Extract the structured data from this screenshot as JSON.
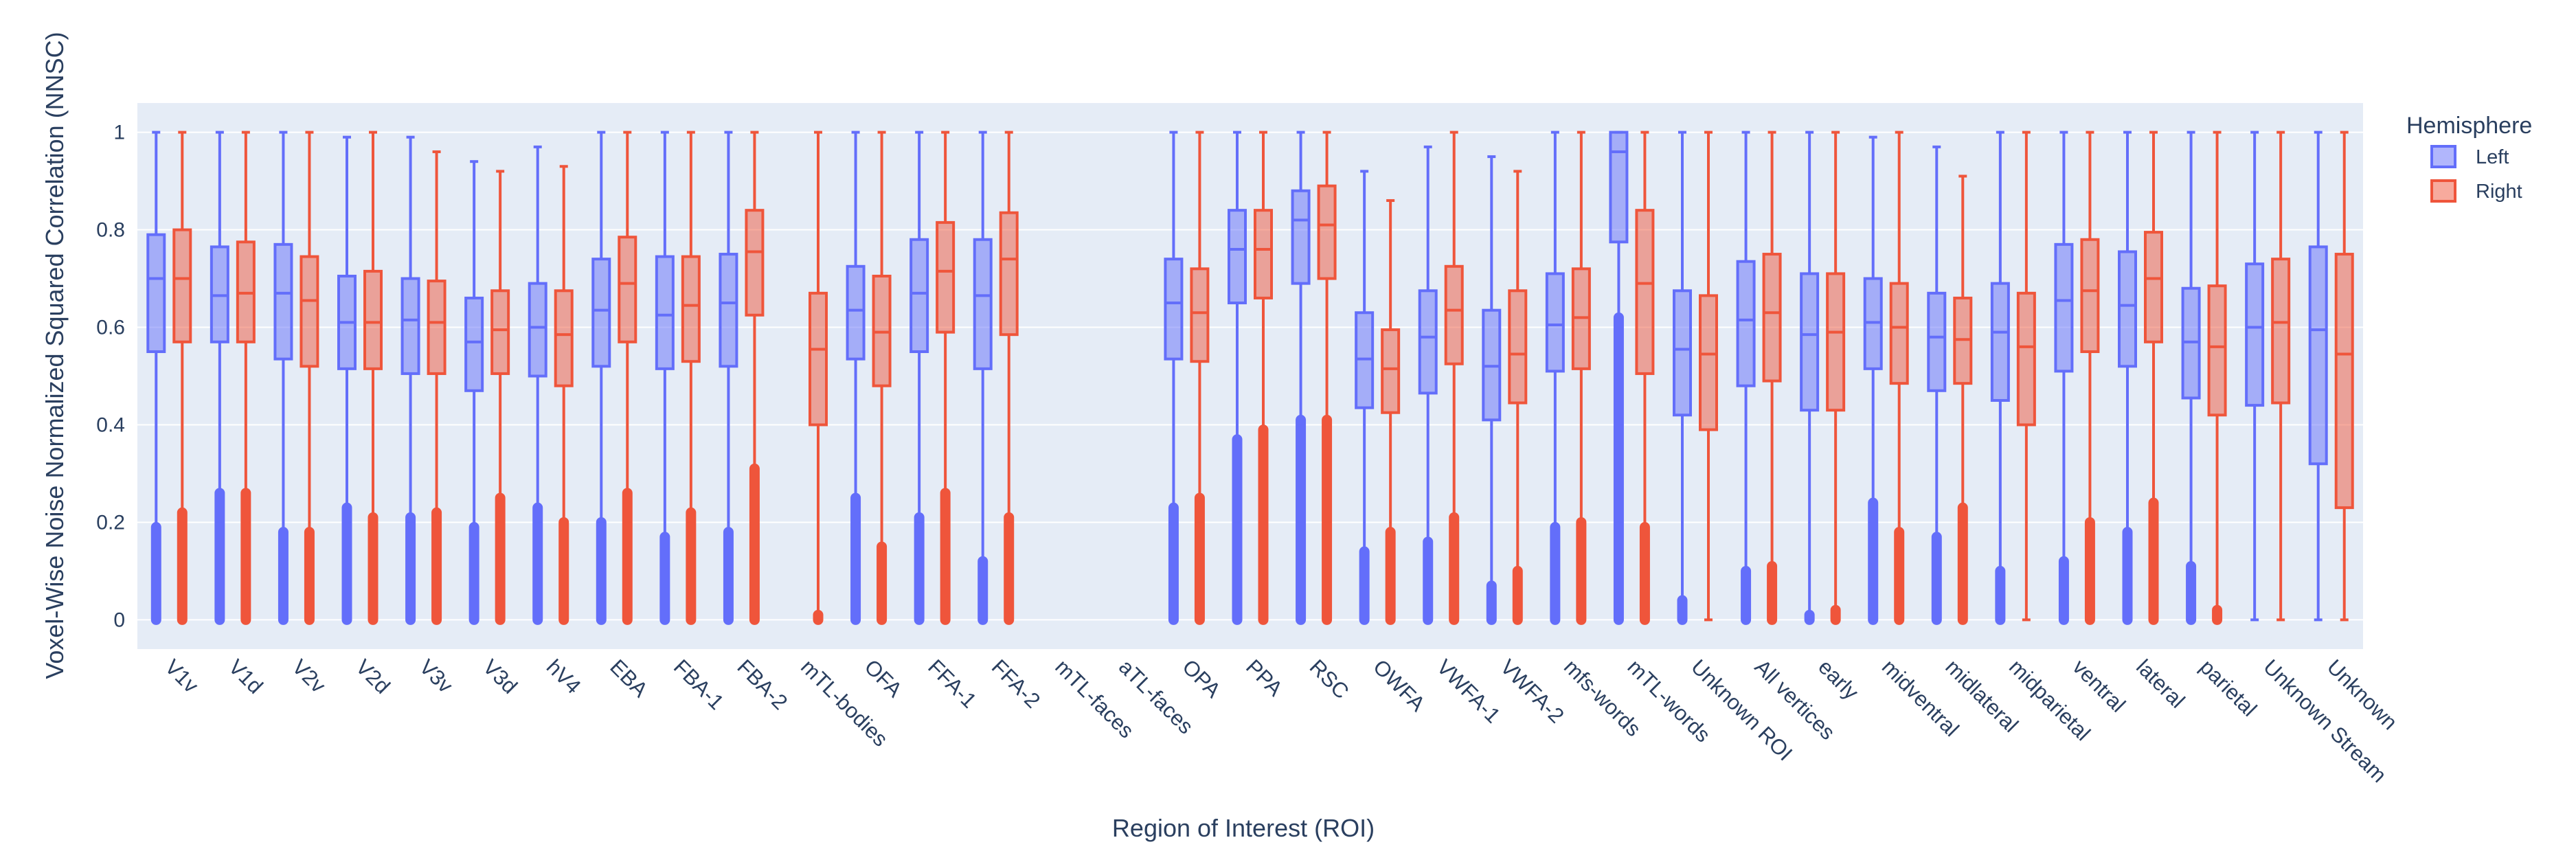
{
  "chart_data": {
    "type": "box",
    "xlabel": "Region of Interest (ROI)",
    "ylabel": "Voxel-Wise Noise Normalized Squared Correlation (NNSC)",
    "ylim": [
      -0.06,
      1.06
    ],
    "y_ticks": [
      0,
      0.2,
      0.4,
      0.6,
      0.8,
      1
    ],
    "y_tick_labels": [
      "0",
      "0.2",
      "0.4",
      "0.6",
      "0.8",
      "1"
    ],
    "grid": true,
    "legend": {
      "title": "Hemisphere",
      "placement": "top-right",
      "entries": [
        "Left",
        "Right"
      ]
    },
    "colors": {
      "Left": "#636efa",
      "Right": "#ef553b",
      "plot_bg": "#e5ecf6",
      "grid": "#ffffff"
    },
    "categories": [
      "V1v",
      "V1d",
      "V2v",
      "V2d",
      "V3v",
      "V3d",
      "hV4",
      "EBA",
      "FBA-1",
      "FBA-2",
      "mTL-bodies",
      "OFA",
      "FFA-1",
      "FFA-2",
      "mTL-faces",
      "aTL-faces",
      "OPA",
      "PPA",
      "RSC",
      "OWFA",
      "VWFA-1",
      "VWFA-2",
      "mfs-words",
      "mTL-words",
      "Unknown ROI",
      "All vertices",
      "early",
      "midventral",
      "midlateral",
      "midparietal",
      "ventral",
      "lateral",
      "parietal",
      "Unknown Stream",
      "Unknown"
    ],
    "series": [
      {
        "name": "Left",
        "boxes": [
          {
            "category": "V1v",
            "q1": 0.55,
            "median": 0.7,
            "q3": 0.79,
            "lower": 0.19,
            "upper": 1.0
          },
          {
            "category": "V1d",
            "q1": 0.57,
            "median": 0.665,
            "q3": 0.765,
            "lower": 0.26,
            "upper": 1.0
          },
          {
            "category": "V2v",
            "q1": 0.535,
            "median": 0.67,
            "q3": 0.77,
            "lower": 0.18,
            "upper": 1.0
          },
          {
            "category": "V2d",
            "q1": 0.515,
            "median": 0.61,
            "q3": 0.705,
            "lower": 0.23,
            "upper": 0.99
          },
          {
            "category": "V3v",
            "q1": 0.505,
            "median": 0.615,
            "q3": 0.7,
            "lower": 0.21,
            "upper": 0.99
          },
          {
            "category": "V3d",
            "q1": 0.47,
            "median": 0.57,
            "q3": 0.66,
            "lower": 0.19,
            "upper": 0.94
          },
          {
            "category": "hV4",
            "q1": 0.5,
            "median": 0.6,
            "q3": 0.69,
            "lower": 0.23,
            "upper": 0.97
          },
          {
            "category": "EBA",
            "q1": 0.52,
            "median": 0.635,
            "q3": 0.74,
            "lower": 0.2,
            "upper": 1.0
          },
          {
            "category": "FBA-1",
            "q1": 0.515,
            "median": 0.625,
            "q3": 0.745,
            "lower": 0.17,
            "upper": 1.0
          },
          {
            "category": "FBA-2",
            "q1": 0.52,
            "median": 0.65,
            "q3": 0.75,
            "lower": 0.18,
            "upper": 1.0
          },
          {
            "category": "mTL-bodies",
            "empty": true
          },
          {
            "category": "OFA",
            "q1": 0.535,
            "median": 0.635,
            "q3": 0.725,
            "lower": 0.25,
            "upper": 1.0
          },
          {
            "category": "FFA-1",
            "q1": 0.55,
            "median": 0.67,
            "q3": 0.78,
            "lower": 0.21,
            "upper": 1.0
          },
          {
            "category": "FFA-2",
            "q1": 0.515,
            "median": 0.665,
            "q3": 0.78,
            "lower": 0.12,
            "upper": 1.0
          },
          {
            "category": "mTL-faces",
            "empty": true
          },
          {
            "category": "aTL-faces",
            "empty": true
          },
          {
            "category": "OPA",
            "q1": 0.535,
            "median": 0.65,
            "q3": 0.74,
            "lower": 0.23,
            "upper": 1.0
          },
          {
            "category": "PPA",
            "q1": 0.65,
            "median": 0.76,
            "q3": 0.84,
            "lower": 0.37,
            "upper": 1.0
          },
          {
            "category": "RSC",
            "q1": 0.69,
            "median": 0.82,
            "q3": 0.88,
            "lower": 0.41,
            "upper": 1.0
          },
          {
            "category": "OWFA",
            "q1": 0.435,
            "median": 0.535,
            "q3": 0.63,
            "lower": 0.14,
            "upper": 0.92
          },
          {
            "category": "VWFA-1",
            "q1": 0.465,
            "median": 0.58,
            "q3": 0.675,
            "lower": 0.16,
            "upper": 0.97
          },
          {
            "category": "VWFA-2",
            "q1": 0.41,
            "median": 0.52,
            "q3": 0.635,
            "lower": 0.07,
            "upper": 0.95
          },
          {
            "category": "mfs-words",
            "q1": 0.51,
            "median": 0.605,
            "q3": 0.71,
            "lower": 0.19,
            "upper": 1.0
          },
          {
            "category": "mTL-words",
            "q1": 0.775,
            "median": 0.96,
            "q3": 1.0,
            "lower": 0.62,
            "upper": 1.0
          },
          {
            "category": "Unknown ROI",
            "q1": 0.42,
            "median": 0.555,
            "q3": 0.675,
            "lower": 0.04,
            "upper": 1.0
          },
          {
            "category": "All vertices",
            "q1": 0.48,
            "median": 0.615,
            "q3": 0.735,
            "lower": 0.1,
            "upper": 1.0
          },
          {
            "category": "early",
            "q1": 0.43,
            "median": 0.585,
            "q3": 0.71,
            "lower": 0.01,
            "upper": 1.0
          },
          {
            "category": "midventral",
            "q1": 0.515,
            "median": 0.61,
            "q3": 0.7,
            "lower": 0.24,
            "upper": 0.99
          },
          {
            "category": "midlateral",
            "q1": 0.47,
            "median": 0.58,
            "q3": 0.67,
            "lower": 0.17,
            "upper": 0.97
          },
          {
            "category": "midparietal",
            "q1": 0.45,
            "median": 0.59,
            "q3": 0.69,
            "lower": 0.1,
            "upper": 1.0
          },
          {
            "category": "ventral",
            "q1": 0.51,
            "median": 0.655,
            "q3": 0.77,
            "lower": 0.12,
            "upper": 1.0
          },
          {
            "category": "lateral",
            "q1": 0.52,
            "median": 0.645,
            "q3": 0.755,
            "lower": 0.18,
            "upper": 1.0
          },
          {
            "category": "parietal",
            "q1": 0.455,
            "median": 0.57,
            "q3": 0.68,
            "lower": 0.11,
            "upper": 1.0
          },
          {
            "category": "Unknown Stream",
            "q1": 0.44,
            "median": 0.6,
            "q3": 0.73,
            "lower": 0.0,
            "upper": 1.0
          },
          {
            "category": "Unknown",
            "q1": 0.32,
            "median": 0.595,
            "q3": 0.765,
            "lower": 0.0,
            "upper": 1.0
          }
        ]
      },
      {
        "name": "Right",
        "boxes": [
          {
            "category": "V1v",
            "q1": 0.57,
            "median": 0.7,
            "q3": 0.8,
            "lower": 0.22,
            "upper": 1.0
          },
          {
            "category": "V1d",
            "q1": 0.57,
            "median": 0.67,
            "q3": 0.775,
            "lower": 0.26,
            "upper": 1.0
          },
          {
            "category": "V2v",
            "q1": 0.52,
            "median": 0.655,
            "q3": 0.745,
            "lower": 0.18,
            "upper": 1.0
          },
          {
            "category": "V2d",
            "q1": 0.515,
            "median": 0.61,
            "q3": 0.715,
            "lower": 0.21,
            "upper": 1.0
          },
          {
            "category": "V3v",
            "q1": 0.505,
            "median": 0.61,
            "q3": 0.695,
            "lower": 0.22,
            "upper": 0.96
          },
          {
            "category": "V3d",
            "q1": 0.505,
            "median": 0.595,
            "q3": 0.675,
            "lower": 0.25,
            "upper": 0.92
          },
          {
            "category": "hV4",
            "q1": 0.48,
            "median": 0.585,
            "q3": 0.675,
            "lower": 0.2,
            "upper": 0.93
          },
          {
            "category": "EBA",
            "q1": 0.57,
            "median": 0.69,
            "q3": 0.785,
            "lower": 0.26,
            "upper": 1.0
          },
          {
            "category": "FBA-1",
            "q1": 0.53,
            "median": 0.645,
            "q3": 0.745,
            "lower": 0.22,
            "upper": 1.0
          },
          {
            "category": "FBA-2",
            "q1": 0.625,
            "median": 0.755,
            "q3": 0.84,
            "lower": 0.31,
            "upper": 1.0
          },
          {
            "category": "mTL-bodies",
            "q1": 0.4,
            "median": 0.555,
            "q3": 0.67,
            "lower": 0.01,
            "upper": 1.0
          },
          {
            "category": "OFA",
            "q1": 0.48,
            "median": 0.59,
            "q3": 0.705,
            "lower": 0.15,
            "upper": 1.0
          },
          {
            "category": "FFA-1",
            "q1": 0.59,
            "median": 0.715,
            "q3": 0.815,
            "lower": 0.26,
            "upper": 1.0
          },
          {
            "category": "FFA-2",
            "q1": 0.585,
            "median": 0.74,
            "q3": 0.835,
            "lower": 0.21,
            "upper": 1.0
          },
          {
            "category": "mTL-faces",
            "empty": true
          },
          {
            "category": "aTL-faces",
            "empty": true
          },
          {
            "category": "OPA",
            "q1": 0.53,
            "median": 0.63,
            "q3": 0.72,
            "lower": 0.25,
            "upper": 1.0
          },
          {
            "category": "PPA",
            "q1": 0.66,
            "median": 0.76,
            "q3": 0.84,
            "lower": 0.39,
            "upper": 1.0
          },
          {
            "category": "RSC",
            "q1": 0.7,
            "median": 0.81,
            "q3": 0.89,
            "lower": 0.41,
            "upper": 1.0
          },
          {
            "category": "OWFA",
            "q1": 0.425,
            "median": 0.515,
            "q3": 0.595,
            "lower": 0.18,
            "upper": 0.86
          },
          {
            "category": "VWFA-1",
            "q1": 0.525,
            "median": 0.635,
            "q3": 0.725,
            "lower": 0.21,
            "upper": 1.0
          },
          {
            "category": "VWFA-2",
            "q1": 0.445,
            "median": 0.545,
            "q3": 0.675,
            "lower": 0.1,
            "upper": 0.92
          },
          {
            "category": "mfs-words",
            "q1": 0.515,
            "median": 0.62,
            "q3": 0.72,
            "lower": 0.2,
            "upper": 1.0
          },
          {
            "category": "mTL-words",
            "q1": 0.505,
            "median": 0.69,
            "q3": 0.84,
            "lower": 0.19,
            "upper": 1.0
          },
          {
            "category": "Unknown ROI",
            "q1": 0.39,
            "median": 0.545,
            "q3": 0.665,
            "lower": 0.0,
            "upper": 1.0
          },
          {
            "category": "All vertices",
            "q1": 0.49,
            "median": 0.63,
            "q3": 0.75,
            "lower": 0.11,
            "upper": 1.0
          },
          {
            "category": "early",
            "q1": 0.43,
            "median": 0.59,
            "q3": 0.71,
            "lower": 0.02,
            "upper": 1.0
          },
          {
            "category": "midventral",
            "q1": 0.485,
            "median": 0.6,
            "q3": 0.69,
            "lower": 0.18,
            "upper": 1.0
          },
          {
            "category": "midlateral",
            "q1": 0.485,
            "median": 0.575,
            "q3": 0.66,
            "lower": 0.23,
            "upper": 0.91
          },
          {
            "category": "midparietal",
            "q1": 0.4,
            "median": 0.56,
            "q3": 0.67,
            "lower": 0.0,
            "upper": 1.0
          },
          {
            "category": "ventral",
            "q1": 0.55,
            "median": 0.675,
            "q3": 0.78,
            "lower": 0.2,
            "upper": 1.0
          },
          {
            "category": "lateral",
            "q1": 0.57,
            "median": 0.7,
            "q3": 0.795,
            "lower": 0.24,
            "upper": 1.0
          },
          {
            "category": "parietal",
            "q1": 0.42,
            "median": 0.56,
            "q3": 0.685,
            "lower": 0.02,
            "upper": 1.0
          },
          {
            "category": "Unknown Stream",
            "q1": 0.445,
            "median": 0.61,
            "q3": 0.74,
            "lower": 0.0,
            "upper": 1.0
          },
          {
            "category": "Unknown",
            "q1": 0.23,
            "median": 0.545,
            "q3": 0.75,
            "lower": 0.0,
            "upper": 1.0
          }
        ]
      }
    ]
  }
}
